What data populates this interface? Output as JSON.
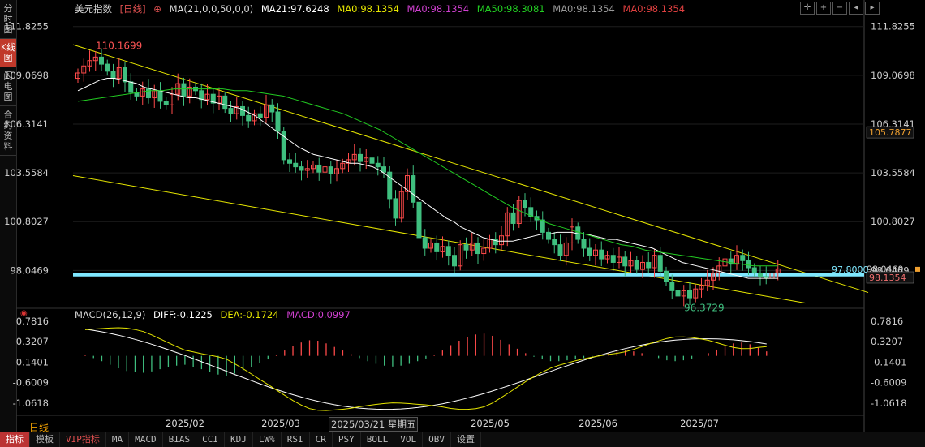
{
  "side_tabs": [
    {
      "label": "分时图",
      "active": false
    },
    {
      "label": "K线图",
      "active": true
    },
    {
      "label": "闪电图",
      "active": false
    },
    {
      "label": "合约资料",
      "active": false
    }
  ],
  "main_info": {
    "name": "美元指数",
    "period_tag": "[日线]",
    "add_icon": "⊕",
    "ma_params": "MA(21,0,0,50,0,0)",
    "ma21": "MA21:97.6248",
    "ma0a": "MA0:98.1354",
    "ma0b": "MA0:98.1354",
    "ma50": "MA50:98.3081",
    "ma0c": "MA0:98.1354",
    "ma0d": "MA0:98.1354"
  },
  "macd_info": {
    "params": "MACD(26,12,9)",
    "diff": "DIFF:-0.1225",
    "dea": "DEA:-0.1724",
    "macd": "MACD:0.0997"
  },
  "price_axis_labels": [
    "111.8255",
    "109.0698",
    "106.3141",
    "103.5584",
    "100.8027",
    "98.0469"
  ],
  "price_tags": {
    "tag_current": "105.7877",
    "tag_line": "97.8000",
    "tag_last": "98.1354",
    "tag_partial": "98.0469"
  },
  "macd_axis_labels": [
    "0.7816",
    "0.3207",
    "-0.1401",
    "-0.6009",
    "-1.0618"
  ],
  "annotations": {
    "high": "110.1699",
    "low": "96.3729"
  },
  "x_labels": [
    "2025/02",
    "2025/03",
    "2025/05",
    "2025/06",
    "2025/07"
  ],
  "crosshair_date": "2025/03/21 星期五",
  "period_label": "日线",
  "bottom_tabs": [
    "指标",
    "模板",
    "VIP指标",
    "MA",
    "MACD",
    "BIAS",
    "CCI",
    "KDJ",
    "LW%",
    "RSI",
    "CR",
    "PSY",
    "BOLL",
    "VOL",
    "OBV",
    "设置"
  ],
  "colors": {
    "up": "#ff4a4a",
    "down": "#3fbf7f",
    "ma21": "#ffffff",
    "ma50": "#22cc22",
    "trend": "#e6e600",
    "hline": "#7fe8ff",
    "diff": "#ffffff",
    "dea": "#e6e600"
  },
  "chart_data": {
    "type": "candlestick",
    "symbol": "美元指数",
    "period": "日线",
    "y_range": [
      96.0,
      112.5
    ],
    "price_ticks": [
      111.8255,
      109.0698,
      106.3141,
      103.5584,
      100.8027,
      98.0469
    ],
    "closes": [
      109.2,
      109.6,
      109.9,
      110.1,
      109.7,
      109.3,
      108.9,
      109.5,
      108.7,
      108.1,
      107.9,
      108.3,
      107.8,
      108.2,
      107.6,
      107.4,
      108.0,
      108.6,
      107.9,
      108.4,
      108.2,
      107.7,
      108.0,
      107.5,
      107.9,
      107.2,
      106.9,
      107.3,
      106.8,
      106.5,
      106.9,
      106.7,
      107.4,
      107.0,
      105.9,
      104.3,
      104.1,
      103.9,
      103.7,
      103.8,
      104.0,
      103.6,
      103.9,
      103.5,
      103.8,
      104.1,
      104.3,
      104.6,
      104.2,
      104.4,
      104.1,
      103.9,
      103.6,
      102.1,
      101.0,
      102.5,
      103.4,
      101.9,
      99.9,
      99.3,
      99.6,
      99.1,
      99.4,
      98.9,
      98.3,
      99.5,
      99.2,
      99.6,
      99.0,
      99.3,
      99.8,
      99.5,
      100.0,
      101.3,
      100.7,
      102.0,
      101.6,
      101.1,
      100.9,
      100.2,
      99.8,
      99.5,
      98.9,
      99.6,
      100.5,
      99.8,
      99.3,
      98.9,
      99.2,
      98.7,
      98.9,
      98.5,
      98.8,
      98.3,
      98.6,
      98.1,
      98.5,
      98.2,
      98.9,
      98.0,
      97.4,
      96.9,
      96.6,
      96.9,
      96.5,
      97.0,
      97.2,
      97.5,
      97.9,
      98.3,
      98.7,
      98.4,
      98.9,
      98.6,
      98.2,
      97.9,
      97.7,
      97.6,
      97.9,
      98.1354
    ],
    "ma21": [
      108.2,
      108.4,
      108.6,
      108.8,
      108.9,
      108.9,
      108.8,
      108.7,
      108.6,
      108.4,
      108.3,
      108.2,
      108.1,
      108.0,
      107.9,
      107.8,
      107.8,
      107.7,
      107.6,
      107.5,
      107.4,
      107.3,
      107.2,
      107.0,
      106.8,
      106.5,
      106.2,
      105.9,
      105.6,
      105.3,
      105.0,
      104.8,
      104.6,
      104.5,
      104.4,
      104.3,
      104.2,
      104.1,
      104.1,
      104.0,
      103.9,
      103.7,
      103.4,
      103.1,
      102.8,
      102.5,
      102.2,
      101.9,
      101.6,
      101.3,
      101.0,
      100.8,
      100.5,
      100.3,
      100.1,
      99.9,
      99.8,
      99.7,
      99.7,
      99.7,
      99.8,
      99.9,
      100.0,
      100.1,
      100.1,
      100.2,
      100.2,
      100.2,
      100.1,
      100.1,
      100.0,
      99.9,
      99.8,
      99.8,
      99.7,
      99.6,
      99.5,
      99.4,
      99.3,
      99.1,
      98.9,
      98.7,
      98.5,
      98.4,
      98.3,
      98.2,
      98.1,
      98.0,
      97.9,
      97.8,
      97.7,
      97.6,
      97.6,
      97.6,
      97.6,
      97.6
    ],
    "ma50": [
      107.6,
      107.7,
      107.8,
      107.9,
      108.0,
      108.1,
      108.2,
      108.2,
      108.3,
      108.3,
      108.3,
      108.3,
      108.3,
      108.2,
      108.2,
      108.1,
      108.0,
      107.9,
      107.7,
      107.5,
      107.3,
      107.1,
      106.9,
      106.6,
      106.3,
      106.0,
      105.6,
      105.2,
      104.8,
      104.4,
      104.0,
      103.6,
      103.2,
      102.8,
      102.4,
      102.0,
      101.6,
      101.3,
      101.0,
      100.7,
      100.5,
      100.3,
      100.1,
      99.9,
      99.7,
      99.5,
      99.4,
      99.2,
      99.1,
      99.0,
      98.9,
      98.8,
      98.7,
      98.6,
      98.5,
      98.4,
      98.3,
      98.3,
      98.3
    ],
    "horizontal_line": 97.8,
    "annotations": [
      {
        "label": "110.1699",
        "type": "high"
      },
      {
        "label": "96.3729",
        "type": "low"
      }
    ],
    "macd": {
      "params": "MACD(26,12,9)",
      "diff": -0.1225,
      "dea": -0.1724,
      "macd": 0.0997,
      "y_range": [
        -1.3,
        0.85
      ],
      "ticks": [
        0.7816,
        0.3207,
        -0.1401,
        -0.6009,
        -1.0618
      ],
      "hist": [
        0.02,
        -0.05,
        -0.12,
        -0.2,
        -0.28,
        -0.34,
        -0.37,
        -0.38,
        -0.35,
        -0.3,
        -0.26,
        -0.22,
        -0.2,
        -0.25,
        -0.3,
        -0.36,
        -0.42,
        -0.45,
        -0.4,
        -0.33,
        -0.25,
        -0.16,
        -0.08,
        0.02,
        0.12,
        0.22,
        0.3,
        0.35,
        0.34,
        0.28,
        0.2,
        0.12,
        0.04,
        -0.05,
        -0.12,
        -0.18,
        -0.22,
        -0.24,
        -0.22,
        -0.18,
        -0.12,
        -0.06,
        0.02,
        0.12,
        0.24,
        0.34,
        0.42,
        0.48,
        0.5,
        0.45,
        0.36,
        0.26,
        0.16,
        0.06,
        -0.02,
        -0.08,
        -0.12,
        -0.12,
        -0.1,
        -0.08,
        -0.05,
        -0.02,
        0.02,
        0.06,
        0.1,
        0.12,
        0.1,
        0.06,
        0.0,
        -0.05,
        -0.1,
        -0.12,
        -0.1,
        -0.06,
        0.0,
        0.06,
        0.14,
        0.22,
        0.28,
        0.3,
        0.26,
        0.18,
        0.1
      ]
    }
  }
}
